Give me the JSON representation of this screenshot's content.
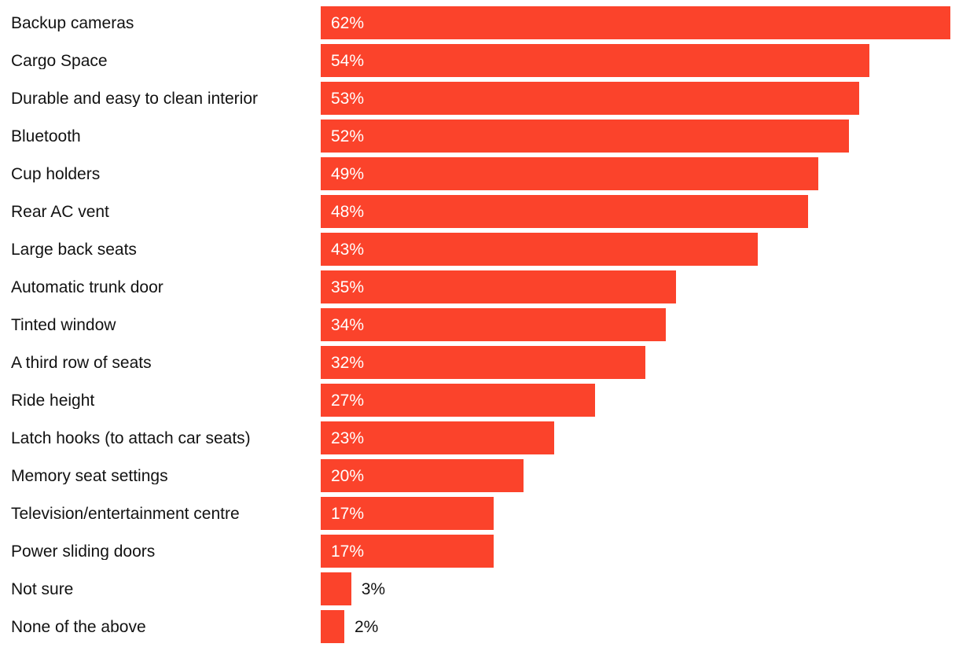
{
  "chart_data": {
    "type": "bar",
    "orientation": "horizontal",
    "title": "",
    "xlabel": "",
    "ylabel": "",
    "categories": [
      "Backup cameras",
      "Cargo Space",
      "Durable and easy to clean interior",
      "Bluetooth",
      "Cup holders",
      "Rear AC vent",
      "Large back seats",
      "Automatic trunk door",
      "Tinted window",
      "A third row of seats",
      "Ride height",
      "Latch hooks (to attach car seats)",
      "Memory seat settings",
      "Television/entertainment centre",
      "Power sliding doors",
      "Not sure",
      "None of the above"
    ],
    "values": [
      62,
      54,
      53,
      52,
      49,
      48,
      43,
      35,
      34,
      32,
      27,
      23,
      20,
      17,
      17,
      3,
      2
    ],
    "value_suffix": "%",
    "value_labels": [
      "62%",
      "54%",
      "53%",
      "52%",
      "49%",
      "48%",
      "43%",
      "35%",
      "34%",
      "32%",
      "27%",
      "23%",
      "20%",
      "17%",
      "17%",
      "3%",
      "2%"
    ],
    "xlim": [
      0,
      62
    ],
    "grid": false,
    "legend": false,
    "bar_color": "#FB432B",
    "category_label_color": "#121212",
    "value_label_inside_color": "#FFFFFF",
    "value_label_outside_color": "#121212",
    "value_outside_threshold": 5
  }
}
